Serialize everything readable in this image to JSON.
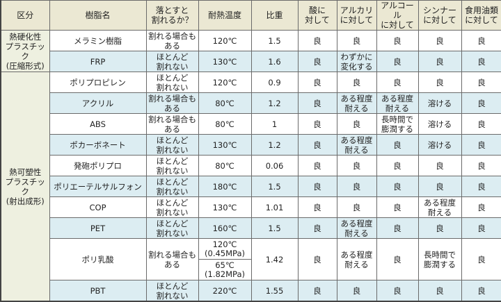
{
  "headers": [
    "区分",
    "樹脂名",
    "落とすと\n割れるか？",
    "耐熱温度",
    "比重",
    "酸に\n対して",
    "アルカリ\nに対して",
    "アルコール\nに対して",
    "シンナー\nに対して",
    "食用油類\nに対して"
  ],
  "categories": [
    {
      "label": "熱硬化性\nプラスチック\n(圧縮形式)",
      "rows": 2
    },
    {
      "label": "熱可塑性\nプラスチック\n(射出成形)",
      "rows": 10
    }
  ],
  "rows": [
    {
      "name": "メラミン樹脂",
      "drop": "割れる場合も\nある",
      "heat": "120℃",
      "gravity": "1.5",
      "acid": "良",
      "alkali": "良",
      "alcohol": "良",
      "thinner": "良",
      "oil": "良"
    },
    {
      "name": "FRP",
      "drop": "ほとんど\n割れない",
      "heat": "130℃",
      "gravity": "1.6",
      "acid": "良",
      "alkali": "わずかに\n変化する",
      "alcohol": "良",
      "thinner": "良",
      "oil": "良"
    },
    {
      "name": "ポリプロピレン",
      "drop": "ほとんど\n割れない",
      "heat": "120℃",
      "gravity": "0.9",
      "acid": "良",
      "alkali": "良",
      "alcohol": "良",
      "thinner": "良",
      "oil": "良"
    },
    {
      "name": "アクリル",
      "drop": "割れる場合も\nある",
      "heat": "80℃",
      "gravity": "1.2",
      "acid": "良",
      "alkali": "ある程度\n耐える",
      "alcohol": "ある程度\n耐える",
      "thinner": "溶ける",
      "oil": "良"
    },
    {
      "name": "ABS",
      "drop": "割れる場合も\nある",
      "heat": "80℃",
      "gravity": "1",
      "acid": "良",
      "alkali": "良",
      "alcohol": "長時間で\n膨潤する",
      "thinner": "溶ける",
      "oil": "良"
    },
    {
      "name": "ポカーボネート",
      "drop": "ほとんど\n割れない",
      "heat": "130℃",
      "gravity": "1.2",
      "acid": "良",
      "alkali": "ある程度\n耐える",
      "alcohol": "良",
      "thinner": "溶ける",
      "oil": "良"
    },
    {
      "name": "発砲ポリプロ",
      "drop": "ほとんど\n割れない",
      "heat": "80℃",
      "gravity": "0.06",
      "acid": "良",
      "alkali": "良",
      "alcohol": "良",
      "thinner": "良",
      "oil": "良"
    },
    {
      "name": "ポリエーテルサルフォン",
      "drop": "ほとんど\n割れない",
      "heat": "180℃",
      "gravity": "1.5",
      "acid": "良",
      "alkali": "良",
      "alcohol": "良",
      "thinner": "良",
      "oil": "良"
    },
    {
      "name": "COP",
      "drop": "ほとんど\n割れない",
      "heat": "130℃",
      "gravity": "1.01",
      "acid": "良",
      "alkali": "良",
      "alcohol": "良",
      "thinner": "ある程度\n耐える",
      "oil": "良"
    },
    {
      "name": "PET",
      "drop": "ほとんど\n割れない",
      "heat": "160℃",
      "gravity": "1.5",
      "acid": "良",
      "alkali": "ある程度\n耐える",
      "alcohol": "良",
      "thinner": "良",
      "oil": "良"
    },
    {
      "name": "ポリ乳酸",
      "drop": "割れる場合も\nある",
      "heat": "120℃\n(0.45MPa)",
      "heat2": "65℃\n(1.82MPa)",
      "gravity": "1.42",
      "acid": "良",
      "alkali": "ある程度\n耐える",
      "alcohol": "良",
      "thinner": "長時間で\n膨潤する",
      "oil": "良"
    },
    {
      "name": "PBT",
      "drop": "ほとんど\n割れない",
      "heat": "220℃",
      "gravity": "1.55",
      "acid": "良",
      "alkali": "良",
      "alcohol": "良",
      "thinner": "良",
      "oil": "良"
    }
  ],
  "colors": {
    "header_bg": "#ebe8d3",
    "category_bg": "#eef0e0",
    "row_alt_bg": "#dcedf2",
    "border": "#6a6a6a"
  }
}
